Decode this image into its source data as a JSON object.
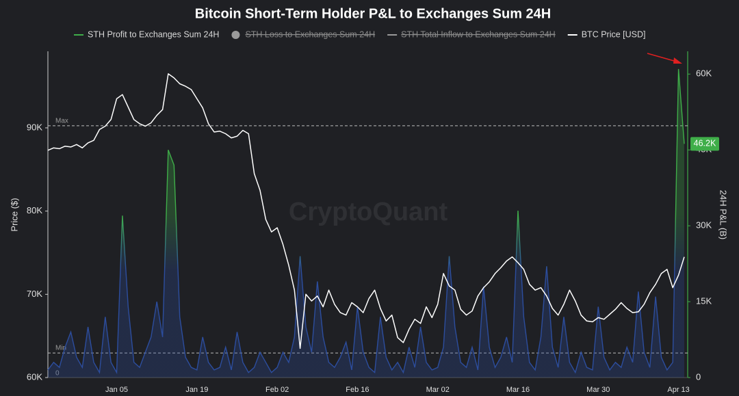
{
  "chart_data": {
    "type": "line",
    "title": "Bitcoin Short-Term Holder P&L to Exchanges Sum 24H",
    "watermark": "CryptoQuant",
    "y_label": "Price ($)",
    "y2_label": "24H P&L (B)",
    "categories": [
      null,
      null,
      null,
      null,
      null,
      null,
      null,
      null,
      null,
      null,
      null,
      null,
      "Jan 05",
      null,
      null,
      null,
      null,
      null,
      null,
      null,
      null,
      null,
      null,
      null,
      null,
      null,
      "Jan 19",
      null,
      null,
      null,
      null,
      null,
      null,
      null,
      null,
      null,
      null,
      null,
      null,
      null,
      "Feb 02",
      null,
      null,
      null,
      null,
      null,
      null,
      null,
      null,
      null,
      null,
      null,
      null,
      null,
      "Feb 16",
      null,
      null,
      null,
      null,
      null,
      null,
      null,
      null,
      null,
      null,
      null,
      null,
      null,
      "Mar 02",
      null,
      null,
      null,
      null,
      null,
      null,
      null,
      null,
      null,
      null,
      null,
      null,
      null,
      "Mar 16",
      null,
      null,
      null,
      null,
      null,
      null,
      null,
      null,
      null,
      null,
      null,
      null,
      null,
      "Mar 30",
      null,
      null,
      null,
      null,
      null,
      null,
      null,
      null,
      null,
      null,
      null,
      null,
      null,
      "Apr 13",
      null
    ],
    "series": [
      {
        "name": "STH Profit to Exchanges Sum 24H",
        "color": "#3fae49",
        "low_color": "#2c4d9e",
        "axis": "y2",
        "area": true,
        "values": [
          1500,
          3000,
          2000,
          6000,
          9000,
          4000,
          2000,
          10000,
          3000,
          1000,
          12000,
          3000,
          1000,
          32000,
          14000,
          3000,
          2000,
          5000,
          8000,
          15000,
          8000,
          45000,
          42000,
          12000,
          4000,
          2000,
          1500,
          8000,
          3000,
          1500,
          2000,
          6000,
          1500,
          9000,
          3000,
          1000,
          2000,
          5000,
          3000,
          1000,
          2000,
          5000,
          3000,
          8000,
          24000,
          10000,
          5000,
          19000,
          8000,
          3000,
          2000,
          4000,
          7000,
          1500,
          14000,
          5000,
          2000,
          1000,
          12000,
          4000,
          1500,
          3000,
          1000,
          6000,
          2000,
          10000,
          3000,
          1500,
          2000,
          6000,
          24000,
          10000,
          3000,
          2000,
          6000,
          1500,
          18000,
          6000,
          2000,
          4000,
          8000,
          3000,
          33000,
          12000,
          3000,
          1500,
          8000,
          22000,
          6000,
          2000,
          12000,
          3000,
          1000,
          5000,
          2000,
          1500,
          14000,
          4000,
          1500,
          3000,
          2000,
          6000,
          3000,
          17000,
          5000,
          2000,
          16000,
          4000,
          1500,
          3000,
          61000,
          46200
        ],
        "last_value_label": "46.2K"
      },
      {
        "name": "STH Loss to Exchanges Sum 24H",
        "color": "#9a9a9a",
        "hidden": true
      },
      {
        "name": "STH Total Inflow to Exchanges Sum 24H",
        "color": "#9a9a9a",
        "hidden": true
      },
      {
        "name": "BTC Price [USD]",
        "color": "#ffffff",
        "axis": "y",
        "values": [
          87300,
          87600,
          87500,
          87800,
          87700,
          88000,
          87600,
          88200,
          88500,
          89800,
          90200,
          91000,
          93500,
          94000,
          92500,
          91000,
          90500,
          90200,
          90600,
          91500,
          92200,
          96500,
          96000,
          95300,
          95000,
          94600,
          93500,
          92400,
          90500,
          89500,
          89600,
          89300,
          88800,
          89000,
          89700,
          89300,
          84500,
          82500,
          79000,
          77500,
          78000,
          76000,
          73500,
          70500,
          63500,
          70000,
          69200,
          69800,
          68500,
          70500,
          68800,
          67800,
          67500,
          69000,
          68500,
          67800,
          69500,
          70500,
          68300,
          66800,
          67500,
          64800,
          64200,
          65800,
          67000,
          66500,
          68500,
          67200,
          68800,
          72500,
          71000,
          70500,
          68200,
          67500,
          68000,
          69800,
          70800,
          71500,
          72500,
          73200,
          74000,
          74500,
          73800,
          73000,
          71200,
          70500,
          70800,
          69800,
          68300,
          67500,
          68800,
          70500,
          69200,
          67500,
          66800,
          66700,
          67200,
          67000,
          67600,
          68200,
          69000,
          68300,
          67800,
          67900,
          68800,
          70200,
          71200,
          72500,
          73000,
          70800,
          72300,
          74500
        ]
      }
    ],
    "ylim": [
      60000,
      99200
    ],
    "yticks": [
      {
        "value": 60000,
        "label": "60K"
      },
      {
        "value": 70000,
        "label": "70K"
      },
      {
        "value": 80000,
        "label": "80K"
      },
      {
        "value": 90000,
        "label": "90K"
      }
    ],
    "y2lim": [
      0,
      64500
    ],
    "y2ticks": [
      0,
      {
        "value": 15000,
        "label": "15K"
      },
      {
        "value": 30000,
        "label": "30K"
      },
      {
        "value": 45000,
        "label": "45K"
      },
      {
        "value": 60000,
        "label": "60K"
      }
    ],
    "reference_lines": [
      {
        "label": "Max",
        "value": 90250
      },
      {
        "label": "Min",
        "value": 62950
      }
    ],
    "baseline_label": "0",
    "grid": false
  }
}
